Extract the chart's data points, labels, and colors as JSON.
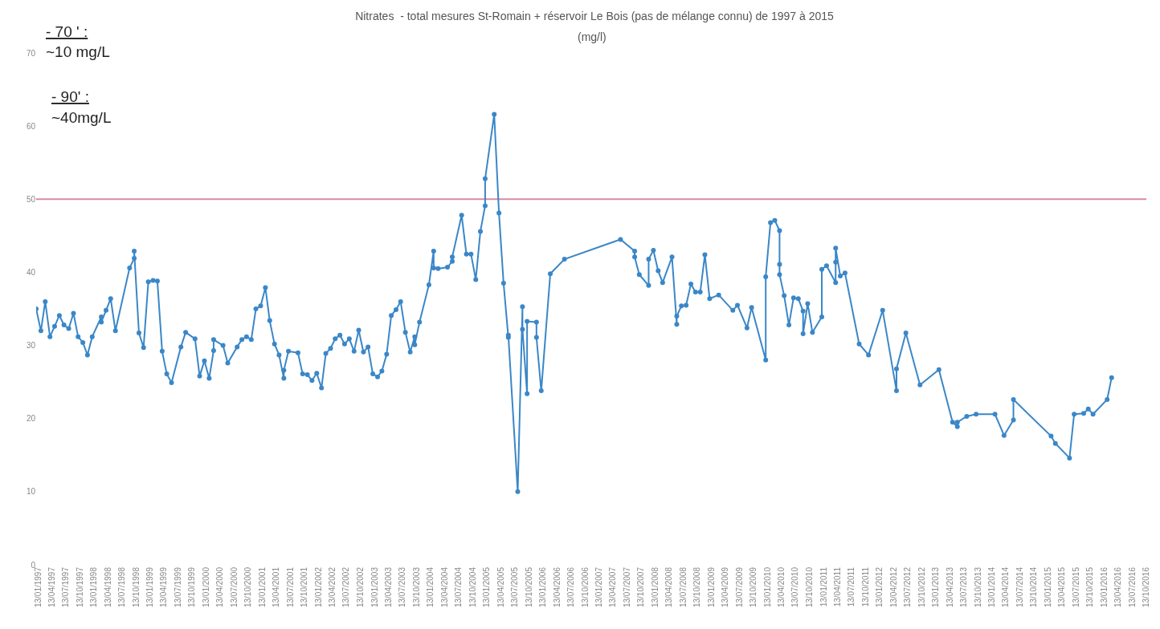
{
  "chart_data": {
    "type": "line",
    "title": "Nitrates  - total mesures St-Romain + réservoir Le Bois (pas de mélange connu) de 1997 à 2015",
    "subtitle": "(mg/l)",
    "annotations": [
      "- 70 ' :",
      "~10 mg/L",
      "- 90' :",
      "~40mg/L"
    ],
    "x": [
      "1997-01",
      "1997-02",
      "1997-03",
      "1997-04",
      "1997-05",
      "1997-06",
      "1997-07",
      "1997-08",
      "1997-09",
      "1997-10",
      "1997-11",
      "1997-12",
      "1998-01",
      "1998-03",
      "1998-03",
      "1998-04",
      "1998-05",
      "1998-06",
      "1998-09",
      "1998-10",
      "1998-10",
      "1998-11",
      "1998-12",
      "1999-01",
      "1999-02",
      "1999-03",
      "1999-04",
      "1999-05",
      "1999-06",
      "1999-08",
      "1999-09",
      "1999-11",
      "1999-12",
      "2000-01",
      "2000-02",
      "2000-03",
      "2000-03",
      "2000-05",
      "2000-06",
      "2000-08",
      "2000-09",
      "2000-10",
      "2000-11",
      "2000-12",
      "2001-01",
      "2001-02",
      "2001-03",
      "2001-04",
      "2001-05",
      "2001-06",
      "2001-06",
      "2001-07",
      "2001-09",
      "2001-10",
      "2001-11",
      "2001-12",
      "2002-01",
      "2002-02",
      "2002-03",
      "2002-04",
      "2002-05",
      "2002-06",
      "2002-07",
      "2002-08",
      "2002-09",
      "2002-10",
      "2002-11",
      "2002-12",
      "2003-01",
      "2003-02",
      "2003-03",
      "2003-04",
      "2003-05",
      "2003-06",
      "2003-07",
      "2003-08",
      "2003-09",
      "2003-10",
      "2003-10",
      "2003-11",
      "2004-01",
      "2004-02",
      "2004-02",
      "2004-03",
      "2004-05",
      "2004-06",
      "2004-06",
      "2004-08",
      "2004-09",
      "2004-10",
      "2004-11",
      "2004-12",
      "2005-01",
      "2005-01",
      "2005-03",
      "2005-04",
      "2005-05",
      "2005-06",
      "2005-06",
      "2005-08",
      "2005-09",
      "2005-09",
      "2005-10",
      "2005-10",
      "2005-12",
      "2005-12",
      "2006-01",
      "2006-03",
      "2006-06",
      "2007-06",
      "2007-09",
      "2007-09",
      "2007-10",
      "2007-12",
      "2007-12",
      "2008-01",
      "2008-02",
      "2008-03",
      "2008-05",
      "2008-06",
      "2008-06",
      "2008-07",
      "2008-08",
      "2008-09",
      "2008-10",
      "2008-11",
      "2008-12",
      "2009-01",
      "2009-03",
      "2009-06",
      "2009-07",
      "2009-09",
      "2009-10",
      "2010-01",
      "2010-01",
      "2010-02",
      "2010-03",
      "2010-04",
      "2010-04",
      "2010-04",
      "2010-05",
      "2010-06",
      "2010-07",
      "2010-08",
      "2010-09",
      "2010-09",
      "2010-10",
      "2010-11",
      "2011-01",
      "2011-01",
      "2011-02",
      "2011-04",
      "2011-04",
      "2011-04",
      "2011-05",
      "2011-06",
      "2011-09",
      "2011-11",
      "2012-02",
      "2012-05",
      "2012-05",
      "2012-07",
      "2012-10",
      "2013-02",
      "2013-05",
      "2013-06",
      "2013-06",
      "2013-08",
      "2013-10",
      "2014-02",
      "2014-04",
      "2014-06",
      "2014-06",
      "2015-02",
      "2015-03",
      "2015-06",
      "2015-07",
      "2015-09",
      "2015-10",
      "2015-11",
      "2016-02",
      "2016-03"
    ],
    "series": [
      {
        "color": "#3a87c8",
        "values": [
          35.0,
          32.0,
          36.0,
          31.2,
          32.6,
          34.1,
          32.8,
          32.3,
          34.4,
          31.2,
          30.4,
          28.7,
          31.2,
          33.9,
          33.2,
          34.8,
          36.4,
          32.0,
          40.6,
          41.9,
          42.9,
          31.7,
          29.7,
          38.7,
          38.9,
          38.8,
          29.2,
          26.1,
          24.9,
          29.8,
          31.8,
          30.9,
          25.8,
          27.9,
          25.5,
          29.3,
          30.8,
          30.0,
          27.6,
          29.8,
          30.8,
          31.2,
          30.8,
          35.0,
          35.4,
          37.9,
          33.4,
          30.2,
          28.7,
          25.5,
          26.6,
          29.2,
          29.0,
          26.1,
          26.0,
          25.2,
          26.2,
          24.2,
          28.9,
          29.6,
          30.9,
          31.4,
          30.2,
          30.9,
          29.2,
          32.1,
          29.1,
          29.8,
          26.1,
          25.7,
          26.5,
          28.8,
          34.1,
          34.9,
          36.0,
          31.8,
          29.1,
          31.2,
          30.1,
          33.2,
          38.3,
          42.9,
          40.6,
          40.5,
          40.7,
          41.5,
          42.1,
          47.8,
          42.5,
          42.5,
          39.0,
          45.6,
          49.1,
          52.8,
          61.6,
          48.1,
          38.5,
          31.1,
          31.4,
          10.0,
          35.3,
          32.2,
          23.4,
          33.3,
          33.2,
          31.1,
          23.8,
          39.8,
          41.8,
          44.5,
          42.9,
          42.1,
          39.7,
          38.2,
          41.8,
          43.0,
          40.2,
          38.6,
          42.1,
          32.9,
          34.0,
          35.4,
          35.5,
          38.4,
          37.3,
          37.3,
          42.4,
          36.4,
          36.9,
          34.8,
          35.5,
          32.4,
          35.2,
          28.0,
          39.4,
          46.8,
          47.1,
          45.7,
          41.1,
          39.7,
          36.8,
          32.8,
          36.5,
          36.4,
          34.7,
          31.6,
          35.7,
          31.8,
          33.9,
          40.4,
          40.9,
          38.6,
          41.4,
          43.3,
          39.5,
          39.9,
          30.2,
          28.7,
          34.8,
          23.8,
          26.8,
          31.7,
          24.6,
          26.7,
          19.5,
          18.9,
          19.5,
          20.3,
          20.6,
          20.6,
          17.7,
          19.8,
          22.6,
          17.6,
          16.6,
          14.6,
          20.6,
          20.7,
          21.3,
          20.6,
          22.6,
          25.6
        ]
      }
    ],
    "marker": "circle",
    "line_style": "solid",
    "grid": false,
    "ylim": [
      0,
      70
    ],
    "yticks": [
      0,
      10,
      20,
      30,
      40,
      50,
      60,
      70
    ],
    "xlim": [
      "1997-01-01",
      "2016-10-13"
    ],
    "xticks": [
      {
        "value": "1997-01-13",
        "label": "13/01/1997"
      },
      {
        "value": "1997-04-13",
        "label": "13/04/1997"
      },
      {
        "value": "1997-07-13",
        "label": "13/07/1997"
      },
      {
        "value": "1997-10-13",
        "label": "13/10/1997"
      },
      {
        "value": "1998-01-13",
        "label": "13/01/1998"
      },
      {
        "value": "1998-04-13",
        "label": "13/04/1998"
      },
      {
        "value": "1998-07-13",
        "label": "13/07/1998"
      },
      {
        "value": "1998-10-13",
        "label": "13/10/1998"
      },
      {
        "value": "1999-01-13",
        "label": "13/01/1999"
      },
      {
        "value": "1999-04-13",
        "label": "13/04/1999"
      },
      {
        "value": "1999-07-13",
        "label": "13/07/1999"
      },
      {
        "value": "1999-10-13",
        "label": "13/10/1999"
      },
      {
        "value": "2000-01-13",
        "label": "13/01/2000"
      },
      {
        "value": "2000-04-13",
        "label": "13/04/2000"
      },
      {
        "value": "2000-07-13",
        "label": "13/07/2000"
      },
      {
        "value": "2000-10-13",
        "label": "13/10/2000"
      },
      {
        "value": "2001-01-13",
        "label": "13/01/2001"
      },
      {
        "value": "2001-04-13",
        "label": "13/04/2001"
      },
      {
        "value": "2001-07-13",
        "label": "13/07/2001"
      },
      {
        "value": "2001-10-13",
        "label": "13/10/2001"
      },
      {
        "value": "2002-01-13",
        "label": "13/01/2002"
      },
      {
        "value": "2002-04-13",
        "label": "13/04/2002"
      },
      {
        "value": "2002-07-13",
        "label": "13/07/2002"
      },
      {
        "value": "2002-10-13",
        "label": "13/10/2002"
      },
      {
        "value": "2003-01-13",
        "label": "13/01/2003"
      },
      {
        "value": "2003-04-13",
        "label": "13/04/2003"
      },
      {
        "value": "2003-07-13",
        "label": "13/07/2003"
      },
      {
        "value": "2003-10-13",
        "label": "13/10/2003"
      },
      {
        "value": "2004-01-13",
        "label": "13/01/2004"
      },
      {
        "value": "2004-04-13",
        "label": "13/04/2004"
      },
      {
        "value": "2004-07-13",
        "label": "13/07/2004"
      },
      {
        "value": "2004-10-13",
        "label": "13/10/2004"
      },
      {
        "value": "2005-01-13",
        "label": "13/01/2005"
      },
      {
        "value": "2005-04-13",
        "label": "13/04/2005"
      },
      {
        "value": "2005-07-13",
        "label": "13/07/2005"
      },
      {
        "value": "2005-10-13",
        "label": "13/10/2005"
      },
      {
        "value": "2006-01-13",
        "label": "13/01/2006"
      },
      {
        "value": "2006-04-13",
        "label": "13/04/2006"
      },
      {
        "value": "2006-07-13",
        "label": "13/07/2006"
      },
      {
        "value": "2006-10-13",
        "label": "13/10/2006"
      },
      {
        "value": "2007-01-13",
        "label": "13/01/2007"
      },
      {
        "value": "2007-04-13",
        "label": "13/04/2007"
      },
      {
        "value": "2007-07-13",
        "label": "13/07/2007"
      },
      {
        "value": "2007-10-13",
        "label": "13/10/2007"
      },
      {
        "value": "2008-01-13",
        "label": "13/01/2008"
      },
      {
        "value": "2008-04-13",
        "label": "13/04/2008"
      },
      {
        "value": "2008-07-13",
        "label": "13/07/2008"
      },
      {
        "value": "2008-10-13",
        "label": "13/10/2008"
      },
      {
        "value": "2009-01-13",
        "label": "13/01/2009"
      },
      {
        "value": "2009-04-13",
        "label": "13/04/2009"
      },
      {
        "value": "2009-07-13",
        "label": "13/07/2009"
      },
      {
        "value": "2009-10-13",
        "label": "13/10/2009"
      },
      {
        "value": "2010-01-13",
        "label": "13/01/2010"
      },
      {
        "value": "2010-04-13",
        "label": "13/04/2010"
      },
      {
        "value": "2010-07-13",
        "label": "13/07/2010"
      },
      {
        "value": "2010-10-13",
        "label": "13/10/2010"
      },
      {
        "value": "2011-01-13",
        "label": "13/01/2011"
      },
      {
        "value": "2011-04-13",
        "label": "13/04/2011"
      },
      {
        "value": "2011-07-13",
        "label": "13/07/2011"
      },
      {
        "value": "2011-10-13",
        "label": "13/10/2011"
      },
      {
        "value": "2012-01-13",
        "label": "13/01/2012"
      },
      {
        "value": "2012-04-13",
        "label": "13/04/2012"
      },
      {
        "value": "2012-07-13",
        "label": "13/07/2012"
      },
      {
        "value": "2012-10-13",
        "label": "13/10/2012"
      },
      {
        "value": "2013-01-13",
        "label": "13/01/2013"
      },
      {
        "value": "2013-04-13",
        "label": "13/04/2013"
      },
      {
        "value": "2013-07-13",
        "label": "13/07/2013"
      },
      {
        "value": "2013-10-13",
        "label": "13/10/2013"
      },
      {
        "value": "2014-01-13",
        "label": "13/01/2014"
      },
      {
        "value": "2014-04-13",
        "label": "13/04/2014"
      },
      {
        "value": "2014-07-13",
        "label": "13/07/2014"
      },
      {
        "value": "2014-10-13",
        "label": "13/10/2014"
      },
      {
        "value": "2015-01-13",
        "label": "13/01/2015"
      },
      {
        "value": "2015-04-13",
        "label": "13/04/2015"
      },
      {
        "value": "2015-07-13",
        "label": "13/07/2015"
      },
      {
        "value": "2015-10-13",
        "label": "13/10/2015"
      },
      {
        "value": "2016-01-13",
        "label": "13/01/2016"
      },
      {
        "value": "2016-04-13",
        "label": "13/04/2016"
      },
      {
        "value": "2016-07-13",
        "label": "13/07/2016"
      },
      {
        "value": "2016-10-13",
        "label": "13/10/2016"
      }
    ],
    "ref_lines": [
      {
        "axis": "y",
        "value": 50,
        "color": "#d98aa0",
        "line_style": "solid"
      }
    ]
  }
}
